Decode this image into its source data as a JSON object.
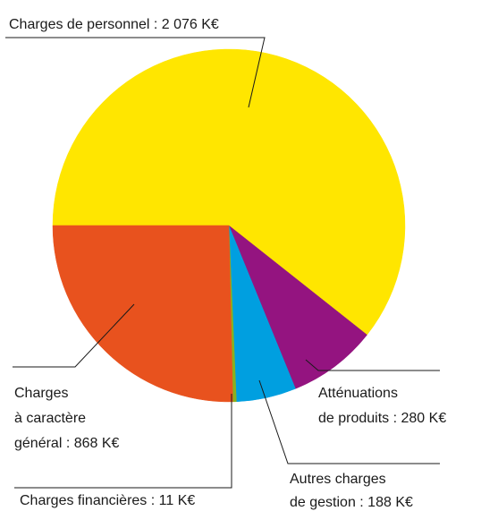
{
  "chart_data": {
    "type": "pie",
    "values": [
      2076,
      280,
      188,
      11,
      868
    ],
    "value_labels": [
      [
        "Charges de personnel : 2 076 K€"
      ],
      [
        "Atténuations",
        "de produits : 280 K€"
      ],
      [
        "Autres charges",
        "de gestion : 188 K€"
      ],
      [
        "Charges financières : 11 K€"
      ],
      [
        "Charges",
        "à caractère",
        "général : 868 K€"
      ]
    ],
    "colors": [
      "#ffe600",
      "#941480",
      "#009fe0",
      "#8ab01e",
      "#e8521e"
    ]
  }
}
